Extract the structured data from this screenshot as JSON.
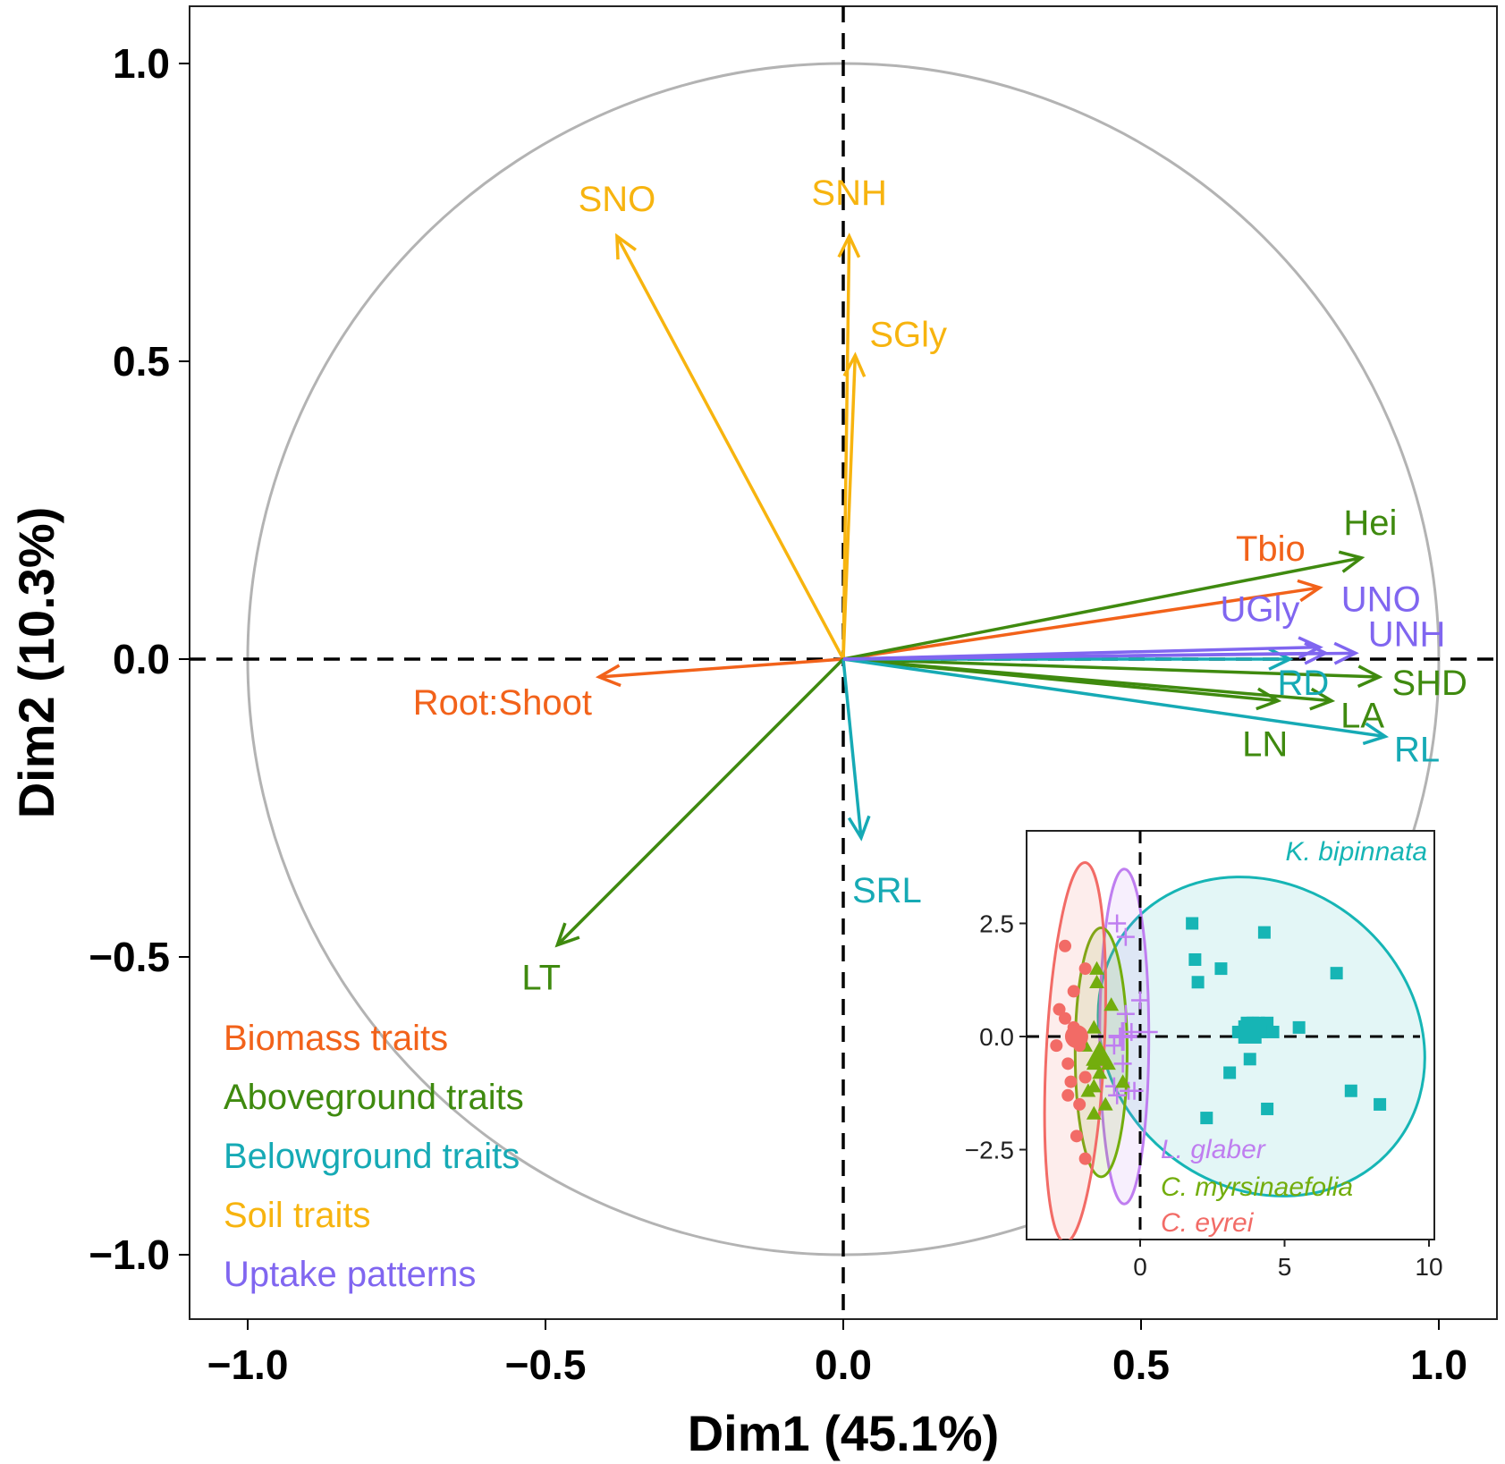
{
  "chart_data": [
    {
      "type": "scatter",
      "subtype": "pca-variable-correlation-circle",
      "title": "",
      "xlabel": "Dim1 (45.1%)",
      "ylabel": "Dim2 (10.3%)",
      "xlim": [
        -1.1,
        1.1
      ],
      "ylim": [
        -1.1,
        1.1
      ],
      "xticks": [
        -1.0,
        -0.5,
        0.0,
        0.5,
        1.0
      ],
      "yticks": [
        -1.0,
        -0.5,
        0.0,
        0.5,
        1.0
      ],
      "xtick_labels": [
        "−1.0",
        "−0.5",
        "0.0",
        "0.5",
        "1.0"
      ],
      "ytick_labels": [
        "−1.0",
        "−0.5",
        "0.0",
        "0.5",
        "1.0"
      ],
      "unit_circle": true,
      "reference_lines": "dashed lines at x=0 and y=0",
      "groups": [
        {
          "name": "Biomass traits",
          "color": "#f2621a"
        },
        {
          "name": "Aboveground traits",
          "color": "#3f8a0f"
        },
        {
          "name": "Belowground traits",
          "color": "#16aab5"
        },
        {
          "name": "Soil traits",
          "color": "#f7b40f"
        },
        {
          "name": "Uptake patterns",
          "color": "#8066f0"
        }
      ],
      "legend_position": "bottom-left",
      "vectors": [
        {
          "label": "SNO",
          "group": "Soil traits",
          "x": -0.38,
          "y": 0.71
        },
        {
          "label": "SNH",
          "group": "Soil traits",
          "x": 0.01,
          "y": 0.71
        },
        {
          "label": "SGly",
          "group": "Soil traits",
          "x": 0.02,
          "y": 0.51
        },
        {
          "label": "Tbio",
          "group": "Biomass traits",
          "x": 0.8,
          "y": 0.12
        },
        {
          "label": "Root:Shoot",
          "group": "Biomass traits",
          "x": -0.41,
          "y": -0.03
        },
        {
          "label": "Hei",
          "group": "Aboveground traits",
          "x": 0.87,
          "y": 0.17
        },
        {
          "label": "SHD",
          "group": "Aboveground traits",
          "x": 0.9,
          "y": -0.03
        },
        {
          "label": "LA",
          "group": "Aboveground traits",
          "x": 0.82,
          "y": -0.07
        },
        {
          "label": "LN",
          "group": "Aboveground traits",
          "x": 0.73,
          "y": -0.07
        },
        {
          "label": "LT",
          "group": "Aboveground traits",
          "x": -0.48,
          "y": -0.48
        },
        {
          "label": "RD",
          "group": "Belowground traits",
          "x": 0.75,
          "y": 0.0
        },
        {
          "label": "RL",
          "group": "Belowground traits",
          "x": 0.91,
          "y": -0.13
        },
        {
          "label": "SRL",
          "group": "Belowground traits",
          "x": 0.03,
          "y": -0.3
        },
        {
          "label": "UNO",
          "group": "Uptake patterns",
          "x": 0.8,
          "y": 0.02
        },
        {
          "label": "UNH",
          "group": "Uptake patterns",
          "x": 0.86,
          "y": 0.01
        },
        {
          "label": "UGly",
          "group": "Uptake patterns",
          "x": 0.81,
          "y": 0.01
        }
      ],
      "label_positions_note": "labels placed beside arrow tips"
    },
    {
      "type": "scatter",
      "subtype": "pca-individuals-inset",
      "title": "",
      "xlabel": "",
      "ylabel": "",
      "xlim": [
        -3.8,
        10.2
      ],
      "ylim": [
        -4.5,
        4.5
      ],
      "xticks": [
        0,
        5,
        10
      ],
      "yticks": [
        2.5,
        0.0,
        -2.5
      ],
      "xtick_labels": [
        "0",
        "5",
        "10"
      ],
      "ytick_labels": [
        "2.5",
        "0.0",
        "−2.5"
      ],
      "reference_lines": "dashed lines at x=0 and y=0",
      "series": [
        {
          "name": "K. bipinnata",
          "marker": "square",
          "color": "#16b5b5",
          "points": [
            [
              1.8,
              2.5
            ],
            [
              4.3,
              2.3
            ],
            [
              1.9,
              1.7
            ],
            [
              2.8,
              1.5
            ],
            [
              6.8,
              1.4
            ],
            [
              2.0,
              1.2
            ],
            [
              3.7,
              0.3
            ],
            [
              3.9,
              0.3
            ],
            [
              4.1,
              0.3
            ],
            [
              4.4,
              0.3
            ],
            [
              4.2,
              0.1
            ],
            [
              3.9,
              0.1
            ],
            [
              4.6,
              0.1
            ],
            [
              3.4,
              0.1
            ],
            [
              5.5,
              0.2
            ],
            [
              3.8,
              -0.5
            ],
            [
              3.1,
              -0.8
            ],
            [
              7.3,
              -1.2
            ],
            [
              4.4,
              -1.6
            ],
            [
              2.3,
              -1.8
            ],
            [
              8.3,
              -1.5
            ]
          ],
          "centroid": [
            3.8,
            0.1
          ],
          "ellipse": {
            "cx": 4.2,
            "cy": 0.0,
            "rx": 5.2,
            "ry": 3.8,
            "rotation_deg": 50
          }
        },
        {
          "name": "L. glaber",
          "marker": "cross",
          "color": "#bf7ef0",
          "points": [
            [
              -0.8,
              2.5
            ],
            [
              -0.5,
              2.2
            ],
            [
              0.0,
              0.8
            ],
            [
              -0.5,
              0.5
            ],
            [
              0.3,
              0.1
            ],
            [
              -0.3,
              0.1
            ],
            [
              -0.7,
              0.0
            ],
            [
              -0.9,
              -0.2
            ],
            [
              -0.6,
              -0.6
            ],
            [
              -0.9,
              -1.1
            ],
            [
              -0.4,
              -1.2
            ],
            [
              -0.8,
              -1.3
            ],
            [
              -0.2,
              -1.2
            ]
          ],
          "centroid": [
            -0.6,
            0.0
          ],
          "ellipse": {
            "cx": -0.55,
            "cy": 0.0,
            "rx": 0.85,
            "ry": 3.7,
            "rotation_deg": 0
          }
        },
        {
          "name": "C. myrsinaefolia",
          "marker": "triangle",
          "color": "#73ad0d",
          "points": [
            [
              -1.5,
              1.5
            ],
            [
              -1.5,
              1.2
            ],
            [
              -1.0,
              0.7
            ],
            [
              -1.6,
              0.2
            ],
            [
              -1.9,
              -0.2
            ],
            [
              -1.6,
              -0.6
            ],
            [
              -1.1,
              -0.6
            ],
            [
              -1.4,
              -0.8
            ],
            [
              -0.6,
              -1.0
            ],
            [
              -1.6,
              -1.1
            ],
            [
              -1.8,
              -1.2
            ],
            [
              -1.6,
              -1.7
            ],
            [
              -1.2,
              -1.5
            ]
          ],
          "centroid": [
            -1.4,
            -0.4
          ],
          "ellipse": {
            "cx": -1.35,
            "cy": -0.35,
            "rx": 0.9,
            "ry": 2.75,
            "rotation_deg": 0
          }
        },
        {
          "name": "C. eyrei",
          "marker": "circle",
          "color": "#f26b66",
          "points": [
            [
              -2.6,
              2.0
            ],
            [
              -1.9,
              1.5
            ],
            [
              -2.3,
              1.0
            ],
            [
              -2.8,
              0.6
            ],
            [
              -2.6,
              0.4
            ],
            [
              -2.3,
              0.2
            ],
            [
              -2.9,
              -0.2
            ],
            [
              -2.1,
              -0.2
            ],
            [
              -2.5,
              -0.6
            ],
            [
              -1.9,
              -0.9
            ],
            [
              -2.4,
              -1.0
            ],
            [
              -2.1,
              -1.5
            ],
            [
              -2.2,
              -2.2
            ],
            [
              -1.9,
              -2.7
            ],
            [
              -2.5,
              -1.3
            ]
          ],
          "centroid": [
            -2.2,
            0.0
          ],
          "ellipse": {
            "cx": -2.25,
            "cy": -0.35,
            "rx": 1.0,
            "ry": 4.2,
            "rotation_deg": -3
          }
        }
      ]
    }
  ]
}
